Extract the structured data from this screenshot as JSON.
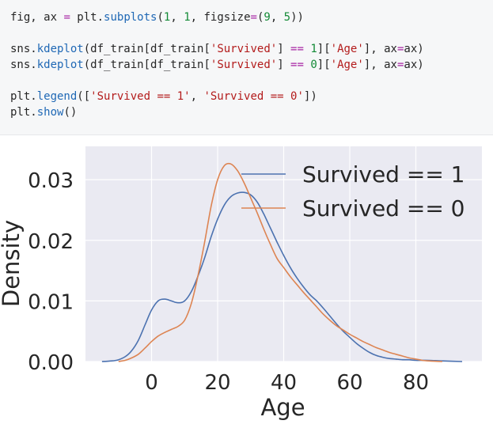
{
  "code_cell": {
    "lines": [
      [
        {
          "t": "fig, ax ",
          "c": ""
        },
        {
          "t": "=",
          "c": "op"
        },
        {
          "t": " plt.",
          "c": ""
        },
        {
          "t": "subplots",
          "c": "fn"
        },
        {
          "t": "(",
          "c": ""
        },
        {
          "t": "1",
          "c": "num"
        },
        {
          "t": ", ",
          "c": ""
        },
        {
          "t": "1",
          "c": "num"
        },
        {
          "t": ", figsize",
          "c": ""
        },
        {
          "t": "=",
          "c": "op"
        },
        {
          "t": "(",
          "c": ""
        },
        {
          "t": "9",
          "c": "num"
        },
        {
          "t": ", ",
          "c": ""
        },
        {
          "t": "5",
          "c": "num"
        },
        {
          "t": "))",
          "c": ""
        }
      ],
      [],
      [
        {
          "t": "sns.",
          "c": ""
        },
        {
          "t": "kdeplot",
          "c": "fn"
        },
        {
          "t": "(df_train[df_train[",
          "c": ""
        },
        {
          "t": "'Survived'",
          "c": "str"
        },
        {
          "t": "] ",
          "c": ""
        },
        {
          "t": "==",
          "c": "op"
        },
        {
          "t": " ",
          "c": ""
        },
        {
          "t": "1",
          "c": "num"
        },
        {
          "t": "][",
          "c": ""
        },
        {
          "t": "'Age'",
          "c": "str"
        },
        {
          "t": "], ax",
          "c": ""
        },
        {
          "t": "=",
          "c": "op"
        },
        {
          "t": "ax)",
          "c": ""
        }
      ],
      [
        {
          "t": "sns.",
          "c": ""
        },
        {
          "t": "kdeplot",
          "c": "fn"
        },
        {
          "t": "(df_train[df_train[",
          "c": ""
        },
        {
          "t": "'Survived'",
          "c": "str"
        },
        {
          "t": "] ",
          "c": ""
        },
        {
          "t": "==",
          "c": "op"
        },
        {
          "t": " ",
          "c": ""
        },
        {
          "t": "0",
          "c": "num"
        },
        {
          "t": "][",
          "c": ""
        },
        {
          "t": "'Age'",
          "c": "str"
        },
        {
          "t": "], ax",
          "c": ""
        },
        {
          "t": "=",
          "c": "op"
        },
        {
          "t": "ax)",
          "c": ""
        }
      ],
      [],
      [
        {
          "t": "plt.",
          "c": ""
        },
        {
          "t": "legend",
          "c": "fn"
        },
        {
          "t": "([",
          "c": ""
        },
        {
          "t": "'Survived == 1'",
          "c": "str"
        },
        {
          "t": ", ",
          "c": ""
        },
        {
          "t": "'Survived == 0'",
          "c": "str"
        },
        {
          "t": "])",
          "c": ""
        }
      ],
      [
        {
          "t": "plt.",
          "c": ""
        },
        {
          "t": "show",
          "c": "fn"
        },
        {
          "t": "()",
          "c": ""
        }
      ]
    ]
  },
  "chart_data": {
    "type": "line",
    "title": "",
    "xlabel": "Age",
    "ylabel": "Density",
    "xlim": [
      -20,
      100
    ],
    "ylim": [
      0,
      0.0355
    ],
    "xticks": [
      0,
      20,
      40,
      60,
      80
    ],
    "xtick_labels": [
      "0",
      "20",
      "40",
      "60",
      "80"
    ],
    "yticks": [
      0,
      0.01,
      0.02,
      0.03
    ],
    "ytick_labels": [
      "0.00",
      "0.01",
      "0.02",
      "0.03"
    ],
    "grid": true,
    "legend_position": "top-right",
    "background_color": "#eaeaf2",
    "series": [
      {
        "name": "Survived == 1",
        "color": "#4c72b0",
        "x": [
          -15,
          -12,
          -10,
          -8,
          -6,
          -4,
          -2,
          0,
          2,
          4,
          6,
          8,
          10,
          12,
          14,
          16,
          18,
          20,
          22,
          24,
          26,
          28,
          30,
          32,
          34,
          36,
          38,
          40,
          42,
          44,
          46,
          48,
          50,
          52,
          54,
          56,
          58,
          60,
          62,
          64,
          66,
          68,
          70,
          72,
          74,
          76,
          78,
          80,
          84,
          88,
          94
        ],
        "y": [
          0.0,
          0.0001,
          0.0003,
          0.0008,
          0.0018,
          0.0035,
          0.006,
          0.0085,
          0.01,
          0.0103,
          0.01,
          0.0097,
          0.01,
          0.0115,
          0.014,
          0.017,
          0.0205,
          0.0235,
          0.0258,
          0.0272,
          0.0278,
          0.0279,
          0.0275,
          0.0263,
          0.0243,
          0.022,
          0.0197,
          0.0175,
          0.0155,
          0.0138,
          0.0123,
          0.011,
          0.01,
          0.0088,
          0.0075,
          0.0062,
          0.005,
          0.004,
          0.003,
          0.0022,
          0.0015,
          0.001,
          0.0007,
          0.0005,
          0.0004,
          0.0003,
          0.0003,
          0.0002,
          0.0002,
          0.0001,
          0.0
        ]
      },
      {
        "name": "Survived == 0",
        "color": "#dd8452",
        "x": [
          -10,
          -8,
          -6,
          -4,
          -2,
          0,
          2,
          4,
          6,
          8,
          10,
          12,
          14,
          16,
          18,
          20,
          22,
          24,
          26,
          28,
          30,
          32,
          34,
          36,
          38,
          40,
          42,
          44,
          46,
          48,
          50,
          52,
          54,
          56,
          58,
          60,
          62,
          64,
          66,
          68,
          70,
          72,
          74,
          76,
          78,
          80,
          82,
          84,
          88
        ],
        "y": [
          0.0,
          0.0002,
          0.0006,
          0.0012,
          0.0022,
          0.0033,
          0.0042,
          0.0048,
          0.0053,
          0.0058,
          0.0068,
          0.0095,
          0.014,
          0.0195,
          0.0255,
          0.03,
          0.0323,
          0.0326,
          0.0315,
          0.0295,
          0.027,
          0.0245,
          0.0218,
          0.0193,
          0.017,
          0.0155,
          0.014,
          0.0127,
          0.0114,
          0.0102,
          0.009,
          0.0078,
          0.0068,
          0.0059,
          0.0052,
          0.0045,
          0.0039,
          0.0033,
          0.0028,
          0.0023,
          0.0019,
          0.0015,
          0.0012,
          0.0009,
          0.0006,
          0.0004,
          0.0002,
          0.0001,
          0.0
        ]
      }
    ]
  }
}
